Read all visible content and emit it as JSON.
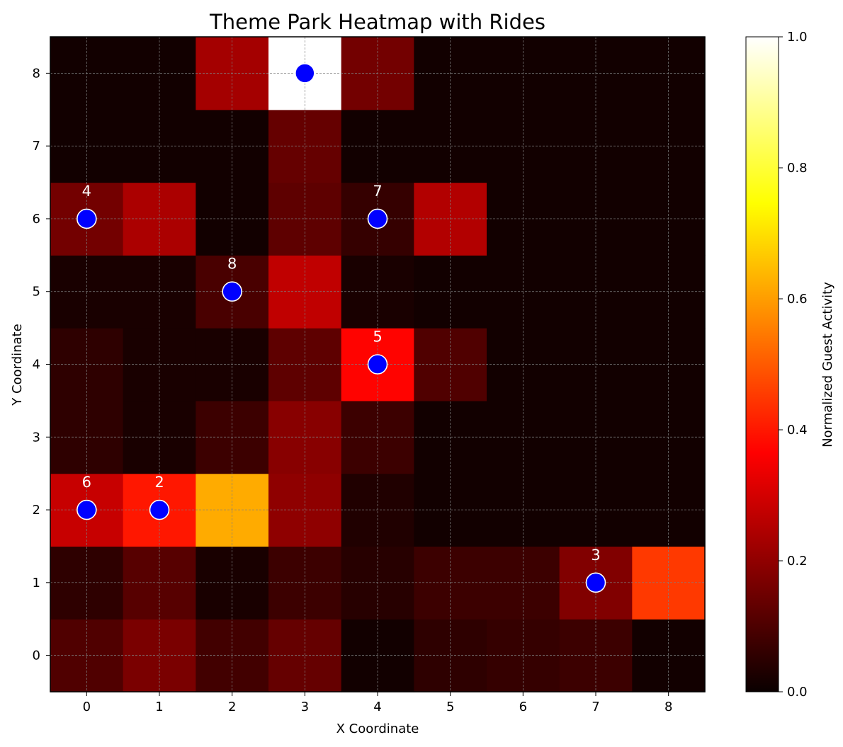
{
  "chart_data": {
    "type": "heatmap",
    "title": "Theme Park Heatmap with Rides",
    "xlabel": "X Coordinate",
    "ylabel": "Y Coordinate",
    "x_ticks": [
      "0",
      "1",
      "2",
      "3",
      "4",
      "5",
      "6",
      "7",
      "8"
    ],
    "y_ticks": [
      "0",
      "1",
      "2",
      "3",
      "4",
      "5",
      "6",
      "7",
      "8"
    ],
    "grid": true,
    "colormap": "hot",
    "colorbar": {
      "label": "Normalized Guest Activity",
      "range": [
        0,
        1
      ],
      "ticks": [
        "0.0",
        "0.2",
        "0.4",
        "0.6",
        "0.8",
        "1.0"
      ]
    },
    "values_by_row_from_y0": [
      [
        0.1,
        0.16,
        0.08,
        0.13,
        0.01,
        0.05,
        0.06,
        0.07,
        0.01
      ],
      [
        0.05,
        0.11,
        0.02,
        0.07,
        0.04,
        0.07,
        0.07,
        0.17,
        0.45
      ],
      [
        0.27,
        0.4,
        0.62,
        0.19,
        0.03,
        0.01,
        0.01,
        0.01,
        0.01
      ],
      [
        0.05,
        0.02,
        0.07,
        0.18,
        0.07,
        0.01,
        0.01,
        0.01,
        0.01
      ],
      [
        0.05,
        0.02,
        0.02,
        0.12,
        0.37,
        0.1,
        0.01,
        0.01,
        0.01
      ],
      [
        0.02,
        0.02,
        0.09,
        0.26,
        0.02,
        0.01,
        0.01,
        0.01,
        0.01
      ],
      [
        0.15,
        0.23,
        0.01,
        0.12,
        0.06,
        0.24,
        0.01,
        0.01,
        0.01
      ],
      [
        0.01,
        0.01,
        0.01,
        0.13,
        0.01,
        0.01,
        0.01,
        0.01,
        0.01
      ],
      [
        0.01,
        0.01,
        0.22,
        1.0,
        0.15,
        0.01,
        0.01,
        0.01,
        0.01
      ]
    ],
    "rides": [
      {
        "x": 3,
        "y": 8,
        "label": ""
      },
      {
        "x": 0,
        "y": 6,
        "label": "4"
      },
      {
        "x": 4,
        "y": 6,
        "label": "7"
      },
      {
        "x": 2,
        "y": 5,
        "label": "8"
      },
      {
        "x": 4,
        "y": 4,
        "label": "5"
      },
      {
        "x": 0,
        "y": 2,
        "label": "6"
      },
      {
        "x": 1,
        "y": 2,
        "label": "2"
      },
      {
        "x": 7,
        "y": 1,
        "label": "3"
      }
    ],
    "marker_color": "#0000ff"
  }
}
